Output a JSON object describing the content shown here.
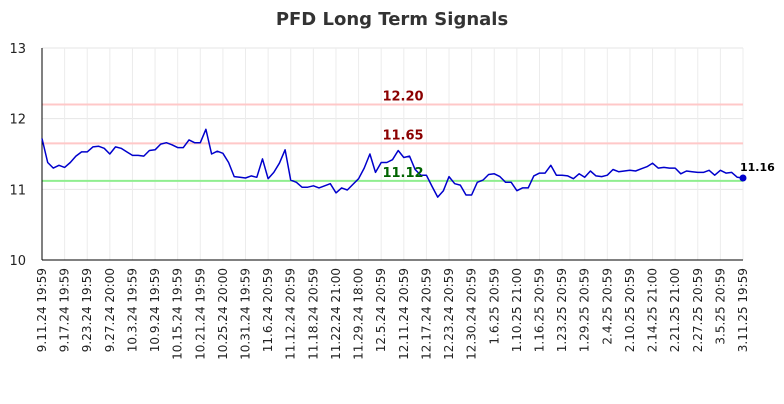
{
  "chart_data": {
    "type": "line",
    "title": "PFD Long Term Signals",
    "xlabel": "",
    "ylabel": "",
    "ylim": [
      10,
      13
    ],
    "y_ticks": [
      "10",
      "11",
      "12",
      "13"
    ],
    "x_tick_labels": [
      "9.11.24 19:59",
      "9.17.24 19:59",
      "9.23.24 19:59",
      "9.27.24 20:00",
      "10.3.24 19:59",
      "10.9.24 19:59",
      "10.15.24 19:59",
      "10.21.24 19:59",
      "10.25.24 20:00",
      "10.31.24 19:59",
      "11.6.24 20:59",
      "11.12.24 20:59",
      "11.18.24 20:59",
      "11.22.24 21:00",
      "11.29.24 18:00",
      "12.5.24 20:59",
      "12.11.24 20:59",
      "12.17.24 20:59",
      "12.23.24 20:59",
      "12.30.24 20:59",
      "1.6.25 20:59",
      "1.10.25 21:00",
      "1.16.25 20:59",
      "1.23.25 20:59",
      "1.29.25 20:59",
      "2.4.25 20:59",
      "2.10.25 20:59",
      "2.14.25 21:00",
      "2.21.25 21:00",
      "2.27.25 20:59",
      "3.5.25 20:59",
      "3.11.25 19:59"
    ],
    "grid": true,
    "legend": "none",
    "levels": [
      {
        "value": 12.2,
        "label": "12.20",
        "line_color": "#ffc8c8",
        "label_color": "#8b0000"
      },
      {
        "value": 11.65,
        "label": "11.65",
        "line_color": "#ffc8c8",
        "label_color": "#8b0000"
      },
      {
        "value": 11.12,
        "label": "11.12",
        "line_color": "#90ee90",
        "label_color": "#006400"
      }
    ],
    "series": [
      {
        "color": "#0000cc",
        "values": [
          11.72,
          11.38,
          11.3,
          11.34,
          11.31,
          11.38,
          11.47,
          11.53,
          11.53,
          11.6,
          11.61,
          11.58,
          11.5,
          11.6,
          11.58,
          11.53,
          11.48,
          11.48,
          11.47,
          11.55,
          11.56,
          11.64,
          11.66,
          11.63,
          11.59,
          11.59,
          11.7,
          11.66,
          11.66,
          11.85,
          11.5,
          11.54,
          11.51,
          11.38,
          11.18,
          11.17,
          11.16,
          11.19,
          11.17,
          11.43,
          11.15,
          11.24,
          11.37,
          11.56,
          11.13,
          11.1,
          11.03,
          11.03,
          11.05,
          11.02,
          11.05,
          11.08,
          10.95,
          11.02,
          10.99,
          11.07,
          11.15,
          11.3,
          11.5,
          11.24,
          11.38,
          11.38,
          11.42,
          11.55,
          11.45,
          11.47,
          11.28,
          11.2,
          11.2,
          11.04,
          10.89,
          10.98,
          11.18,
          11.08,
          11.06,
          10.92,
          10.92,
          11.1,
          11.13,
          11.21,
          11.22,
          11.18,
          11.1,
          11.1,
          10.98,
          11.02,
          11.02,
          11.19,
          11.23,
          11.23,
          11.34,
          11.2,
          11.2,
          11.19,
          11.15,
          11.22,
          11.17,
          11.26,
          11.19,
          11.18,
          11.2,
          11.28,
          11.25,
          11.26,
          11.27,
          11.26,
          11.29,
          11.32,
          11.37,
          11.3,
          11.31,
          11.3,
          11.3,
          11.22,
          11.26,
          11.25,
          11.24,
          11.24,
          11.27,
          11.2,
          11.27,
          11.23,
          11.24,
          11.17,
          11.16
        ]
      }
    ],
    "last_value": 11.16,
    "last_label": "11.16"
  }
}
